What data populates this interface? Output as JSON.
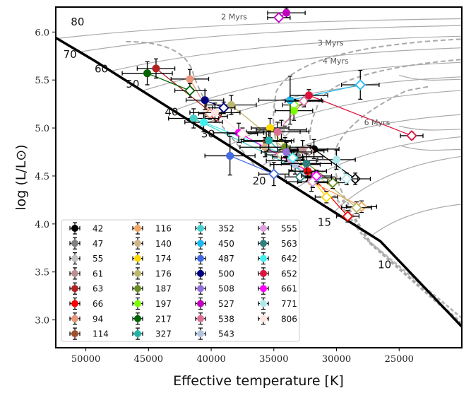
{
  "chart_data": {
    "type": "scatter",
    "title": "",
    "xlabel": "Effective temperature [K]",
    "ylabel": "log (L/L⊙)",
    "xlim": [
      52400,
      20000
    ],
    "ylim": [
      2.71,
      6.26
    ],
    "x_inverted": true,
    "grid": false,
    "xticks": [
      50000,
      45000,
      40000,
      35000,
      30000,
      25000
    ],
    "xtick_labels": [
      "50000",
      "45000",
      "40000",
      "35000",
      "30000",
      "25000"
    ],
    "yticks": [
      3.0,
      3.5,
      4.0,
      4.5,
      5.0,
      5.5,
      6.0
    ],
    "ytick_labels": [
      "3.0",
      "3.5",
      "4.0",
      "4.5",
      "5.0",
      "5.5",
      "6.0"
    ],
    "zams": [
      [
        52400,
        5.94
      ],
      [
        49300,
        5.7
      ],
      [
        26500,
        3.82
      ],
      [
        20000,
        2.93
      ]
    ],
    "zams_mass_labels": [
      {
        "label": "80",
        "T": 51200,
        "L": 6.07
      },
      {
        "label": "70",
        "T": 51800,
        "L": 5.73
      },
      {
        "label": "60",
        "T": 49300,
        "L": 5.58
      },
      {
        "label": "50",
        "T": 46800,
        "L": 5.42
      },
      {
        "label": "40",
        "T": 43700,
        "L": 5.13
      },
      {
        "label": "30",
        "T": 40800,
        "L": 4.9
      },
      {
        "label": "20",
        "T": 36700,
        "L": 4.41
      },
      {
        "label": "15",
        "T": 31500,
        "L": 3.98
      },
      {
        "label": "10",
        "T": 26700,
        "L": 3.54
      }
    ],
    "isochrone_labels": [
      {
        "label": "2 Myrs",
        "T": 39200,
        "L": 6.13
      },
      {
        "label": "3 Myrs",
        "T": 31500,
        "L": 5.86
      },
      {
        "label": "4 Myrs",
        "T": 31100,
        "L": 5.67
      },
      {
        "label": "6 Myrs",
        "T": 27800,
        "L": 5.03
      }
    ],
    "legend_position": "lower-left",
    "series": [
      {
        "name": "42",
        "color": "#000000",
        "spec": [
          31800,
          4.78
        ],
        "evol": [
          28500,
          4.47
        ],
        "terr": 2000,
        "lerr": 0.1
      },
      {
        "name": "47",
        "color": "#808080",
        "spec": [
          33100,
          4.7
        ],
        "evol": null,
        "terr": 2000,
        "lerr": 0.1
      },
      {
        "name": "55",
        "color": "#c0c0c0",
        "spec": [
          34400,
          4.98
        ],
        "evol": [
          34100,
          4.96
        ],
        "terr": 2000,
        "lerr": 0.1
      },
      {
        "name": "61",
        "color": "#bc8f8f",
        "spec": [
          32700,
          4.77
        ],
        "evol": [
          32200,
          4.76
        ],
        "terr": 2000,
        "lerr": 0.1
      },
      {
        "name": "63",
        "color": "#b22222",
        "spec": [
          44400,
          5.62
        ],
        "evol": [
          39600,
          5.12
        ],
        "terr": 1500,
        "lerr": 0.1
      },
      {
        "name": "66",
        "color": "#ff0000",
        "spec": [
          32300,
          4.55
        ],
        "evol": [
          29100,
          4.08
        ],
        "terr": 1500,
        "lerr": 0.1
      },
      {
        "name": "94",
        "color": "#e9967a",
        "spec": [
          41700,
          5.51
        ],
        "evol": [
          40100,
          5.15
        ],
        "terr": 1500,
        "lerr": 0.1
      },
      {
        "name": "114",
        "color": "#a0522d",
        "spec": [
          35600,
          4.86
        ],
        "evol": null,
        "terr": 2000,
        "lerr": 0.1
      },
      {
        "name": "116",
        "color": "#f4a460",
        "spec": [
          32000,
          4.44
        ],
        "evol": [
          28000,
          4.18
        ],
        "terr": 2000,
        "lerr": 0.1
      },
      {
        "name": "140",
        "color": "#d2b48c",
        "spec": [
          35700,
          4.8
        ],
        "evol": [
          34400,
          4.72
        ],
        "terr": 2000,
        "lerr": 0.1
      },
      {
        "name": "174",
        "color": "#ffd700",
        "spec": [
          35300,
          5.0
        ],
        "evol": [
          30800,
          4.28
        ],
        "terr": 1500,
        "lerr": 0.1
      },
      {
        "name": "176",
        "color": "#bdb76b",
        "spec": [
          38400,
          5.24
        ],
        "evol": [
          28400,
          4.17
        ],
        "terr": 2000,
        "lerr": 0.1
      },
      {
        "name": "187",
        "color": "#6b8e23",
        "spec": [
          34100,
          4.8
        ],
        "evol": [
          30300,
          4.43
        ],
        "terr": 2000,
        "lerr": 0.1
      },
      {
        "name": "197",
        "color": "#7cfc00",
        "spec": [
          33400,
          5.18
        ],
        "evol": [
          33400,
          5.24
        ],
        "terr": 1500,
        "lerr": 0.1
      },
      {
        "name": "217",
        "color": "#006400",
        "spec": [
          45100,
          5.57
        ],
        "evol": [
          41700,
          5.39
        ],
        "terr": 2000,
        "lerr": 0.12
      },
      {
        "name": "327",
        "color": "#20b2aa",
        "spec": [
          35400,
          4.87
        ],
        "evol": [
          31900,
          4.44
        ],
        "terr": 2000,
        "lerr": 0.1
      },
      {
        "name": "352",
        "color": "#48d1cc",
        "spec": [
          41400,
          5.1
        ],
        "evol": [
          31600,
          4.48
        ],
        "terr": 2000,
        "lerr": 0.1
      },
      {
        "name": "450",
        "color": "#1eb9f0",
        "spec": [
          33700,
          5.29
        ],
        "evol": [
          28100,
          5.45
        ],
        "terr": 2500,
        "lerr": 0.25
      },
      {
        "name": "487",
        "color": "#4169e1",
        "spec": [
          38500,
          4.71
        ],
        "evol": [
          35000,
          4.52
        ],
        "terr": 2000,
        "lerr": 0.2
      },
      {
        "name": "500",
        "color": "#000080",
        "spec": [
          40500,
          5.29
        ],
        "evol": [
          39000,
          5.21
        ],
        "terr": 1500,
        "lerr": 0.1
      },
      {
        "name": "508",
        "color": "#9370db",
        "spec": [
          34000,
          4.75
        ],
        "evol": null,
        "terr": 2000,
        "lerr": 0.1
      },
      {
        "name": "527",
        "color": "#c000c0",
        "spec": [
          34000,
          6.2
        ],
        "evol": [
          34600,
          6.15
        ],
        "terr": 1500,
        "lerr": 0.05
      },
      {
        "name": "538",
        "color": "#db7093",
        "spec": [
          34700,
          4.96
        ],
        "evol": [
          32600,
          5.28
        ],
        "terr": 2500,
        "lerr": 0.1
      },
      {
        "name": "543",
        "color": "#b0c4de",
        "spec": [
          33300,
          4.62
        ],
        "evol": null,
        "terr": 2000,
        "lerr": 0.1
      },
      {
        "name": "555",
        "color": "#dda0dd",
        "spec": [
          33600,
          4.66
        ],
        "evol": [
          31900,
          4.44
        ],
        "terr": 2000,
        "lerr": 0.1
      },
      {
        "name": "563",
        "color": "#2f7f7f",
        "spec": [
          32400,
          4.63
        ],
        "evol": [
          32900,
          4.49
        ],
        "terr": 2000,
        "lerr": 0.1
      },
      {
        "name": "642",
        "color": "#40f0f0",
        "spec": [
          40600,
          5.06
        ],
        "evol": [
          33500,
          4.69
        ],
        "terr": 1500,
        "lerr": 0.1
      },
      {
        "name": "652",
        "color": "#dc143c",
        "spec": [
          32200,
          5.34
        ],
        "evol": [
          24000,
          4.92
        ],
        "terr": 1500,
        "lerr": 0.06
      },
      {
        "name": "661",
        "color": "#ff00ff",
        "spec": [
          37800,
          4.95
        ],
        "evol": [
          31600,
          4.5
        ],
        "terr": 2000,
        "lerr": 0.1
      },
      {
        "name": "771",
        "color": "#b0e8ec",
        "spec": [
          30000,
          4.67
        ],
        "evol": [
          29200,
          4.47
        ],
        "terr": 1500,
        "lerr": 0.1
      },
      {
        "name": "806",
        "color": "#ffe4e1",
        "spec": [
          39700,
          5.16
        ],
        "evol": [
          37500,
          4.94
        ],
        "terr": 2000,
        "lerr": 0.1
      }
    ]
  }
}
